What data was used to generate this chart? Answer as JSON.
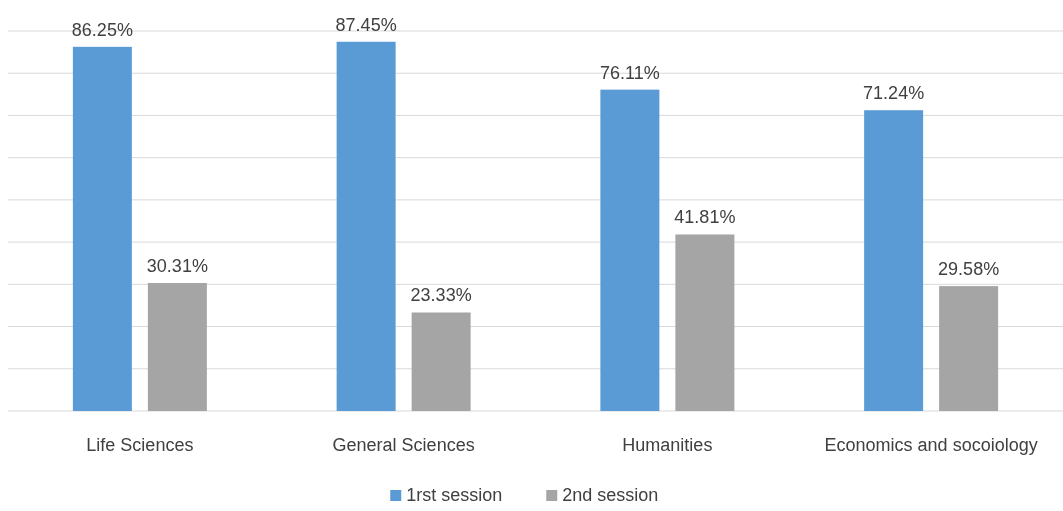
{
  "chart_data": {
    "type": "bar",
    "categories": [
      "Life Sciences",
      "General Sciences",
      "Humanities",
      "Economics and socoiology"
    ],
    "series": [
      {
        "name": "1rst session",
        "color": "#5b9bd5",
        "values": [
          86.25,
          87.45,
          76.11,
          71.24
        ],
        "value_labels": [
          "86.25%",
          "87.45%",
          "76.11%",
          "71.24%"
        ]
      },
      {
        "name": "2nd session",
        "color": "#a5a5a5",
        "values": [
          30.31,
          23.33,
          41.81,
          29.58
        ],
        "value_labels": [
          "30.31%",
          "23.33%",
          "41.81%",
          "29.58%"
        ]
      }
    ],
    "ylim": [
      0,
      90
    ],
    "yticks": [
      {
        "value": 0,
        "label": null
      },
      {
        "value": 10,
        "label": null
      },
      {
        "value": 20,
        "label": null
      },
      {
        "value": 30,
        "label": null
      },
      {
        "value": 40,
        "label": null
      },
      {
        "value": 50,
        "label": null
      },
      {
        "value": 60,
        "label": null
      },
      {
        "value": 70,
        "label": null
      },
      {
        "value": 80,
        "label": null
      },
      {
        "value": 90,
        "label": null
      }
    ],
    "tick_labels": "x",
    "grid": "y",
    "legend": "bottom"
  }
}
